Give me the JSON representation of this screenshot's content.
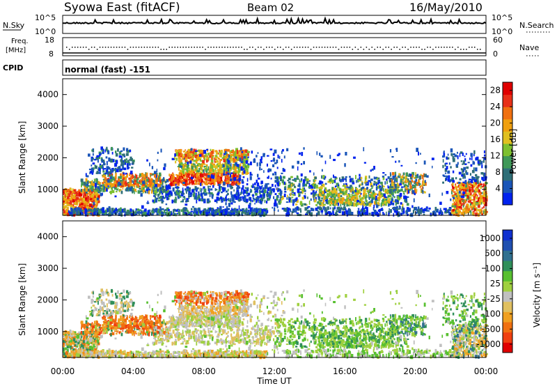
{
  "header": {
    "station": "Syowa East (fitACF)",
    "beam": "Beam 02",
    "date": "16/May/2010"
  },
  "noise_panel": {
    "left_label": "N.Sky",
    "left_top": "10^5",
    "left_bottom": "10^0",
    "right_top": "10^5",
    "right_bottom": "10^0",
    "right_label": "N.Search"
  },
  "freq_panel": {
    "left_label_line1": "Freq.",
    "left_label_line2": "[MHz]",
    "left_top": "18",
    "left_bottom": "8",
    "right_top": "60",
    "right_bottom": "0",
    "right_label": "Nave"
  },
  "cpid_panel": {
    "label": "CPID",
    "mode": "normal (fast) -151"
  },
  "colors": {
    "power": [
      "#0022ee",
      "#1a55b8",
      "#2f6f78",
      "#3f9858",
      "#7dc030",
      "#e0c020",
      "#f0a010",
      "#f07010",
      "#e83018",
      "#e00000"
    ],
    "velocity": [
      "#e00000",
      "#f04010",
      "#f07010",
      "#f0a020",
      "#e0c060",
      "#c0c0c0",
      "#a0d040",
      "#58c030",
      "#2f8f5a",
      "#307090",
      "#2050b0",
      "#1030d0"
    ]
  },
  "chart_data": [
    {
      "type": "heatmap",
      "title": "Power",
      "xlabel": "Time UT",
      "ylabel": "Slant Range [km]",
      "xlim": [
        "00:00",
        "24:00"
      ],
      "ylim": [
        180,
        4500
      ],
      "x_ticks": [
        "00:00",
        "04:00",
        "08:00",
        "12:00",
        "16:00",
        "20:00",
        "00:00"
      ],
      "y_ticks": [
        1000,
        2000,
        3000,
        4000
      ],
      "colorbar": {
        "label": "Power [dB]",
        "ticks": [
          4,
          8,
          12,
          16,
          20,
          24,
          28
        ],
        "range": [
          0,
          30
        ]
      }
    },
    {
      "type": "heatmap",
      "title": "Velocity",
      "xlabel": "Time UT",
      "ylabel": "Slant Range [km]",
      "xlim": [
        "00:00",
        "24:00"
      ],
      "ylim": [
        180,
        4500
      ],
      "x_ticks": [
        "00:00",
        "04:00",
        "08:00",
        "12:00",
        "16:00",
        "20:00",
        "00:00"
      ],
      "y_ticks": [
        1000,
        2000,
        3000,
        4000
      ],
      "colorbar": {
        "label": "Velocity [m s⁻¹]",
        "ticks": [
          1000,
          500,
          100,
          25,
          -25,
          -100,
          -500,
          -1000
        ]
      }
    }
  ],
  "xaxis_title": "Time UT",
  "xaxis_ticks": [
    "00:00",
    "04:00",
    "08:00",
    "12:00",
    "16:00",
    "20:00",
    "00:00"
  ]
}
